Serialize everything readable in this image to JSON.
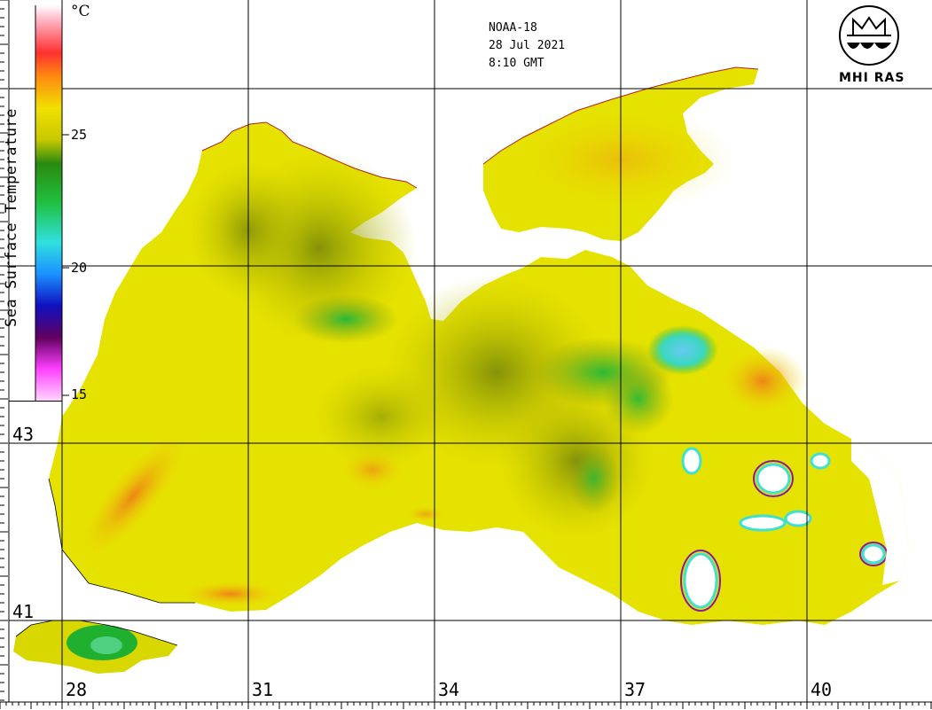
{
  "map": {
    "satellite": "NOAA-18",
    "date": "28 Jul 2021",
    "time": "8:10 GMT",
    "institution": "MHI RAS",
    "colorbar": {
      "title": "Sea Surface Temperature",
      "unit": "°C",
      "ticks": [
        "25",
        "20",
        "15"
      ]
    },
    "latitudes": [
      "43",
      "41"
    ],
    "longitudes": [
      "28",
      "31",
      "34",
      "37",
      "40"
    ],
    "colors": {
      "warm": "#e9e400",
      "hot": "#f08a18",
      "mid": "#8c9a10",
      "cool": "#2ea82a",
      "cold": "#36dcdc",
      "land": "#ffffff"
    }
  }
}
